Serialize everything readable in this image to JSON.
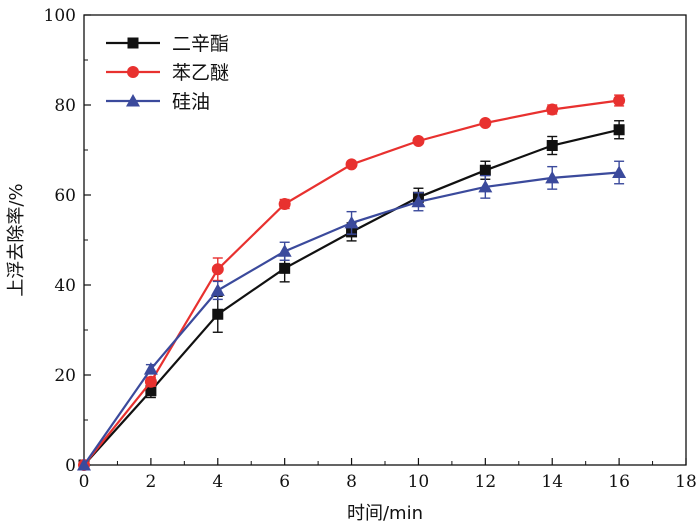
{
  "chart_data": {
    "type": "line",
    "title": "",
    "xlabel": "时间/min",
    "ylabel": "上浮去除率/%",
    "xlim": [
      0,
      18
    ],
    "ylim": [
      0,
      100
    ],
    "xticks": [
      0,
      2,
      4,
      6,
      8,
      10,
      12,
      14,
      16,
      18
    ],
    "yticks": [
      0,
      20,
      40,
      60,
      80,
      100
    ],
    "grid": false,
    "legend_position": "top-left",
    "x": [
      0,
      2,
      4,
      6,
      8,
      10,
      12,
      14,
      16
    ],
    "series": [
      {
        "name": "二辛酯",
        "color": "#111111",
        "marker": "square",
        "values": [
          0,
          16.5,
          33.5,
          43.7,
          51.8,
          59.5,
          65.5,
          71.0,
          74.5
        ],
        "errors": [
          0,
          1.5,
          4.0,
          3.0,
          2.0,
          2.0,
          2.0,
          2.0,
          2.0
        ]
      },
      {
        "name": "苯乙醚",
        "color": "#e8312f",
        "marker": "circle",
        "values": [
          0,
          18.5,
          43.5,
          58.0,
          66.8,
          72.0,
          76.0,
          79.0,
          81.0
        ],
        "errors": [
          0,
          1.0,
          2.5,
          1.0,
          0.5,
          0.5,
          0.5,
          1.0,
          1.2
        ]
      },
      {
        "name": "硅油",
        "color": "#3b4a9c",
        "marker": "triangle",
        "values": [
          0,
          21.3,
          38.8,
          47.5,
          53.8,
          58.5,
          61.8,
          63.8,
          65.0
        ],
        "errors": [
          0,
          1.0,
          2.0,
          2.0,
          2.5,
          2.0,
          2.5,
          2.5,
          2.5
        ]
      }
    ]
  }
}
